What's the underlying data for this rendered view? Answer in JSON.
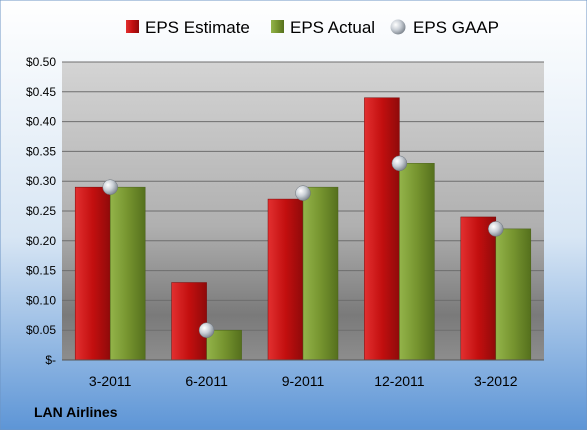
{
  "chart_data": {
    "type": "bar",
    "categories": [
      "3-2011",
      "6-2011",
      "9-2011",
      "12-2011",
      "3-2012"
    ],
    "series": [
      {
        "name": "EPS Estimate",
        "values": [
          0.29,
          0.13,
          0.27,
          0.44,
          0.24
        ],
        "color": "#cc1111",
        "mark": "bar"
      },
      {
        "name": "EPS Actual",
        "values": [
          0.29,
          0.05,
          0.29,
          0.33,
          0.22
        ],
        "color": "#7a9a32",
        "mark": "bar"
      },
      {
        "name": "EPS GAAP",
        "values": [
          0.29,
          0.05,
          0.28,
          0.33,
          0.22
        ],
        "color": "#b4bcc4",
        "mark": "marker"
      }
    ],
    "ylim": [
      0,
      0.5
    ],
    "yticks": [
      0,
      0.05,
      0.1,
      0.15,
      0.2,
      0.25,
      0.3,
      0.35,
      0.4,
      0.45,
      0.5
    ],
    "ytick_labels": [
      "$-",
      "$0.05",
      "$0.10",
      "$0.15",
      "$0.20",
      "$0.25",
      "$0.30",
      "$0.35",
      "$0.40",
      "$0.45",
      "$0.50"
    ],
    "grid": true,
    "legend_position": "top",
    "company_label": "LAN Airlines"
  }
}
